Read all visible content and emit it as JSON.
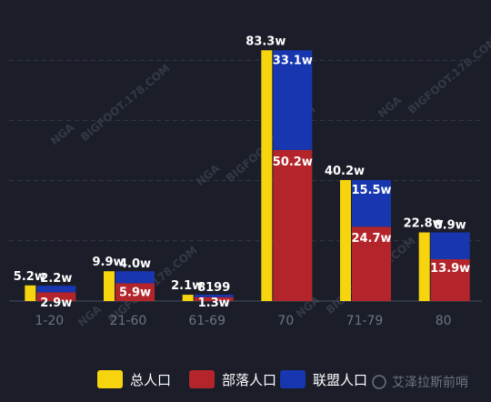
{
  "chart_data": {
    "type": "bar",
    "categories": [
      "1-20",
      "21-60",
      "61-69",
      "70",
      "71-79",
      "80"
    ],
    "series": [
      {
        "name": "总人口",
        "color": "#f6d40e",
        "values": [
          5.2,
          9.9,
          2.1,
          83.3,
          40.2,
          22.8
        ],
        "labels": [
          "5.2w",
          "9.9w",
          "2.1w",
          "83.3w",
          "40.2w",
          "22.8w"
        ]
      },
      {
        "name": "部落人口",
        "color": "#b3252a",
        "values": [
          2.9,
          5.9,
          1.3,
          50.2,
          24.7,
          13.9
        ],
        "labels": [
          "2.9w",
          "5.9w",
          "1.3w",
          "50.2w",
          "24.7w",
          "13.9w"
        ]
      },
      {
        "name": "联盟人口",
        "color": "#1736b0",
        "values": [
          2.2,
          4.0,
          0.8199,
          33.1,
          15.5,
          8.9
        ],
        "labels": [
          "2.2w",
          "4.0w",
          "8199",
          "33.1w",
          "15.5w",
          "8.9w"
        ]
      }
    ],
    "stacked_series": [
      "部落人口",
      "联盟人口"
    ],
    "ylim": [
      0,
      100
    ],
    "grid": true,
    "legend": "bottom"
  },
  "footer": {
    "source_caption": "艾泽拉斯前哨"
  },
  "watermark": {
    "text": "NGA",
    "subtitle": "BIGFOOT.178.COM"
  }
}
